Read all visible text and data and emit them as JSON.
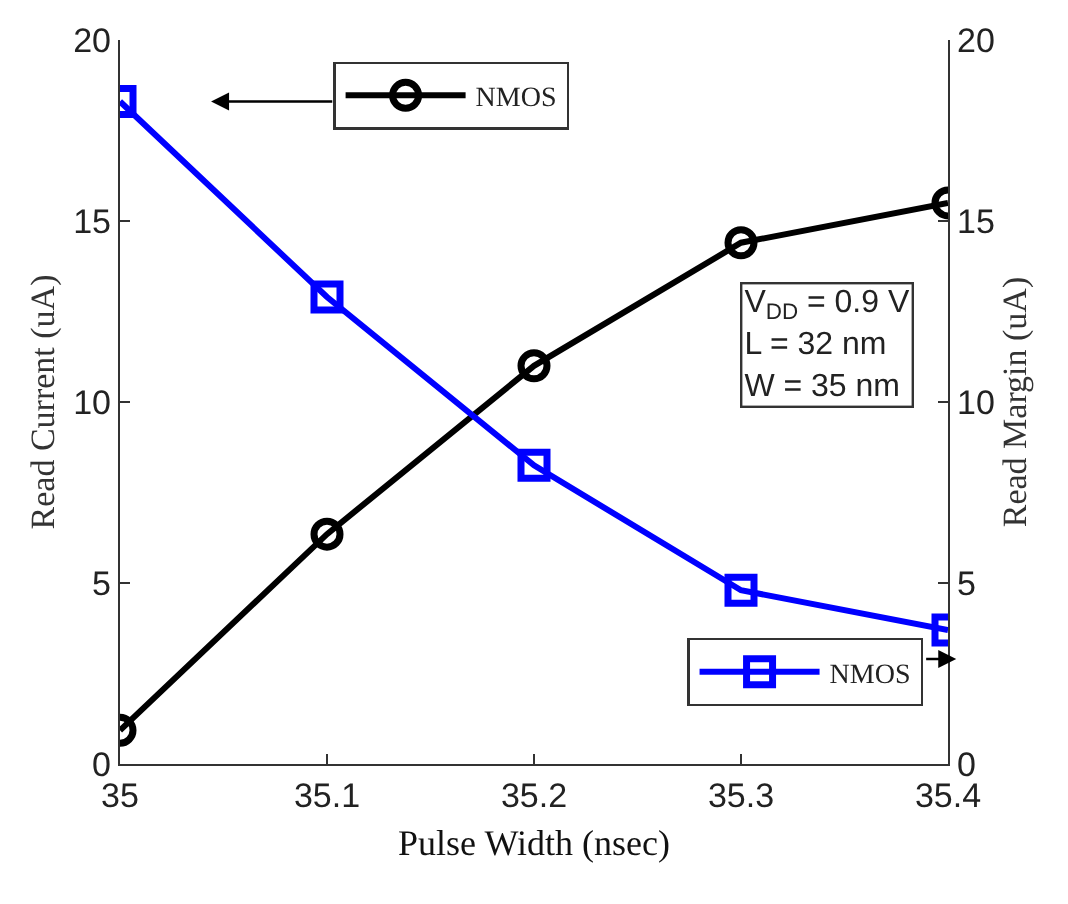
{
  "chart_data": {
    "type": "line",
    "xlabel": "Pulse Width (nsec)",
    "ylabel": "Read Current (uA)",
    "y2label": "Read Margin (uA)",
    "x": [
      35,
      35.1,
      35.2,
      35.3,
      35.4
    ],
    "series": [
      {
        "name": "NMOS",
        "color": "#000000",
        "marker": "circle",
        "values": [
          0.93,
          6.35,
          11.0,
          14.4,
          15.5
        ]
      },
      {
        "name": "NMOS",
        "color": "#0000ff",
        "marker": "square",
        "axis": "y2",
        "values": [
          18.3,
          12.9,
          8.25,
          4.8,
          3.7
        ]
      }
    ],
    "xlim": [
      35,
      35.4
    ],
    "xticks": [
      35,
      35.1,
      35.2,
      35.3,
      35.4
    ],
    "ylim": [
      0,
      20
    ],
    "yticks": [
      0,
      5,
      10,
      15,
      20
    ],
    "y2lim": [
      0,
      20
    ],
    "y2ticks": [
      0,
      5,
      10,
      15,
      20
    ],
    "grid": false,
    "legend": "top",
    "line_style": "solid",
    "annotations": [
      "V$_{DD}$ = 0.9 V\nL = 32 nm\nW = 35 nm"
    ]
  }
}
